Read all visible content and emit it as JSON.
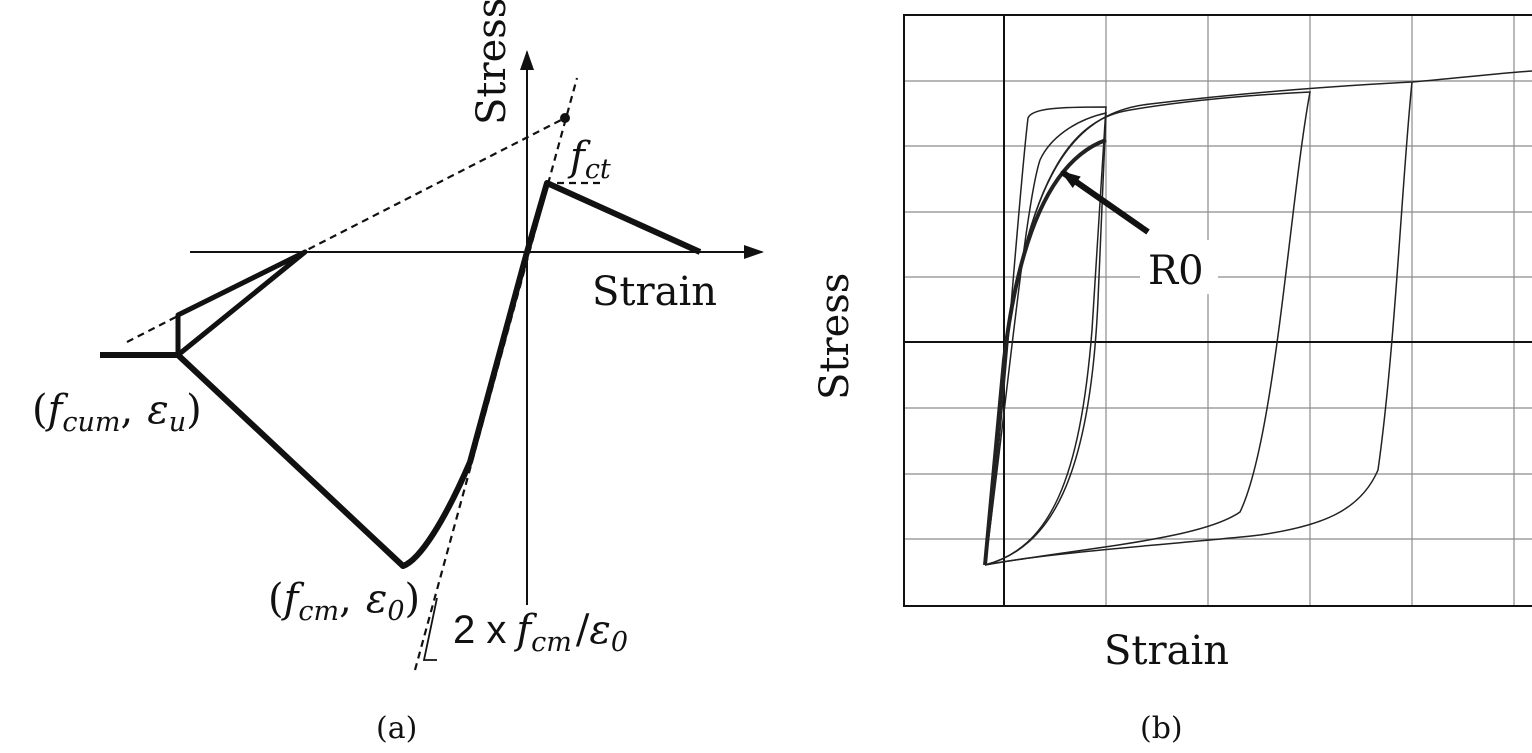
{
  "panel_a": {
    "y_axis_label": "Stress",
    "x_axis_label": "Strain",
    "peak_tension_label": "f",
    "peak_tension_sub": "ct",
    "ultimate_point_label": {
      "open": "(",
      "f": "f",
      "f_sub": "cum",
      "sep": ",",
      "eps": "ε",
      "eps_sub": "u",
      "close": ")"
    },
    "peak_compression_label": {
      "open": "(",
      "f": "f",
      "f_sub": "cm",
      "sep": ",",
      "eps": "ε",
      "eps_sub": "0",
      "close": ")"
    },
    "slope_label": {
      "coef": "2 x",
      "f": "f",
      "f_sub": "cm",
      "slash": "/",
      "eps": "ε",
      "eps_sub": "0"
    },
    "caption": "(a)"
  },
  "panel_b": {
    "y_axis_label": "Stress",
    "x_axis_label": "Strain",
    "pointer_label": "R0",
    "caption": "(b)"
  }
}
